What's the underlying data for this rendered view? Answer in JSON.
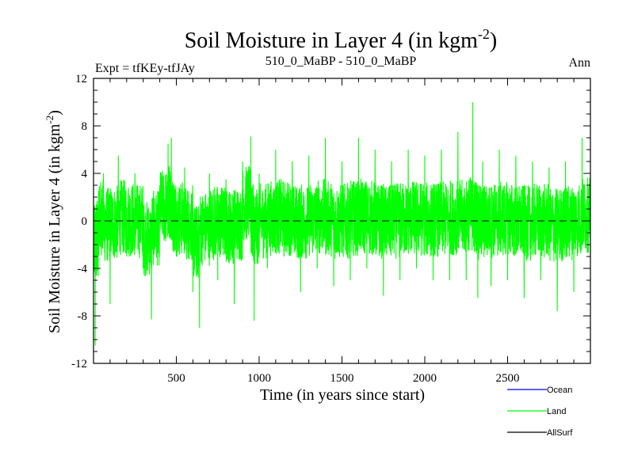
{
  "chart_data": {
    "type": "line",
    "title": "Soil Moisture in Layer 4 (in kgm",
    "title_sup": "-2",
    "title_close": ")",
    "subtitle_left": "Expt = tfKEy-tfJAy",
    "subtitle_center": "510_0_MaBP - 510_0_MaBP",
    "subtitle_right": "Ann",
    "xlabel": "Time (in years since start)",
    "ylabel": "Soil Moisture in Layer 4 (in kgm",
    "ylabel_sup": "-2",
    "ylabel_close": ")",
    "xlim": [
      0,
      3000
    ],
    "ylim": [
      -12,
      12
    ],
    "xticks": [
      500,
      1000,
      1500,
      2000,
      2500
    ],
    "yticks": [
      -12,
      -8,
      -4,
      0,
      4,
      8,
      12
    ],
    "reference_line": 0,
    "series": [
      {
        "name": "Land",
        "color": "#00ff00",
        "approx_points": [
          [
            0,
            -4.0
          ],
          [
            10,
            -10.5
          ],
          [
            30,
            -2.0
          ],
          [
            60,
            4.0
          ],
          [
            100,
            -7.0
          ],
          [
            150,
            5.5
          ],
          [
            200,
            -3.0
          ],
          [
            250,
            4.0
          ],
          [
            300,
            -4.0
          ],
          [
            350,
            -8.3
          ],
          [
            400,
            3.0
          ],
          [
            450,
            6.5
          ],
          [
            470,
            7.0
          ],
          [
            500,
            -3.0
          ],
          [
            550,
            4.5
          ],
          [
            600,
            -6.0
          ],
          [
            640,
            -9.0
          ],
          [
            700,
            4.0
          ],
          [
            750,
            -5.0
          ],
          [
            800,
            3.5
          ],
          [
            850,
            -7.0
          ],
          [
            900,
            5.0
          ],
          [
            950,
            7.1
          ],
          [
            970,
            -8.4
          ],
          [
            1000,
            4.0
          ],
          [
            1050,
            -4.0
          ],
          [
            1100,
            6.0
          ],
          [
            1150,
            -3.0
          ],
          [
            1200,
            5.0
          ],
          [
            1250,
            -6.0
          ],
          [
            1300,
            5.5
          ],
          [
            1350,
            -4.0
          ],
          [
            1400,
            7.0
          ],
          [
            1450,
            -5.5
          ],
          [
            1500,
            5.0
          ],
          [
            1550,
            -5.0
          ],
          [
            1600,
            7.0
          ],
          [
            1650,
            -4.0
          ],
          [
            1700,
            6.0
          ],
          [
            1750,
            -6.3
          ],
          [
            1800,
            5.0
          ],
          [
            1850,
            -5.0
          ],
          [
            1900,
            6.0
          ],
          [
            1950,
            -4.0
          ],
          [
            2000,
            5.5
          ],
          [
            2050,
            -5.0
          ],
          [
            2100,
            6.0
          ],
          [
            2150,
            -5.0
          ],
          [
            2200,
            7.5
          ],
          [
            2250,
            -5.0
          ],
          [
            2290,
            10.0
          ],
          [
            2320,
            -6.5
          ],
          [
            2350,
            5.0
          ],
          [
            2400,
            -5.5
          ],
          [
            2450,
            6.0
          ],
          [
            2500,
            -5.0
          ],
          [
            2550,
            5.5
          ],
          [
            2600,
            -6.5
          ],
          [
            2650,
            5.0
          ],
          [
            2700,
            -5.0
          ],
          [
            2750,
            4.5
          ],
          [
            2800,
            -7.6
          ],
          [
            2850,
            5.0
          ],
          [
            2900,
            -6.0
          ],
          [
            2950,
            7.0
          ],
          [
            3000,
            -3.0
          ]
        ]
      },
      {
        "name": "Ocean",
        "color": "#0000ff",
        "approx_points": []
      },
      {
        "name": "AllSurf",
        "color": "#000000",
        "approx_points": []
      }
    ],
    "legend": {
      "placement": "bottom-right",
      "entries": [
        {
          "label": "Ocean",
          "color": "#0000ff"
        },
        {
          "label": "Land",
          "color": "#00ff00"
        },
        {
          "label": "AllSurf",
          "color": "#000000"
        }
      ]
    },
    "grid": false
  }
}
